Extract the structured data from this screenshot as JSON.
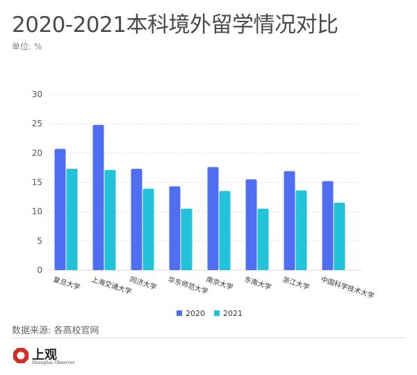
{
  "title": "2020-2021本科境外留学情况对比",
  "unit": "单位: %",
  "source": "数据来源: 各高校官网",
  "logo": {
    "text": "上观",
    "subtext": "Shanghai Observer"
  },
  "colors": {
    "series_2020": "#4f6ef2",
    "series_2021": "#22c3d8",
    "grid": "#d6d6d6",
    "logo_red": "#d42a2a"
  },
  "chart_data": {
    "type": "bar",
    "title": "2020-2021本科境外留学情况对比",
    "xlabel": "",
    "ylabel": "单位: %",
    "ylim": [
      0,
      30
    ],
    "yticks": [
      0,
      5,
      10,
      15,
      20,
      25,
      30
    ],
    "grid": true,
    "legend": "bottom-center",
    "categories": [
      "复旦大学",
      "上海交通大学",
      "同济大学",
      "华东师范大学",
      "南京大学",
      "东南大学",
      "浙江大学",
      "中国科学技术大学"
    ],
    "series": [
      {
        "name": "2020",
        "values": [
          20.7,
          24.8,
          17.3,
          14.3,
          17.6,
          15.5,
          16.9,
          15.2
        ]
      },
      {
        "name": "2021",
        "values": [
          17.3,
          17.1,
          13.9,
          10.5,
          13.5,
          10.5,
          13.6,
          11.5
        ]
      }
    ]
  }
}
